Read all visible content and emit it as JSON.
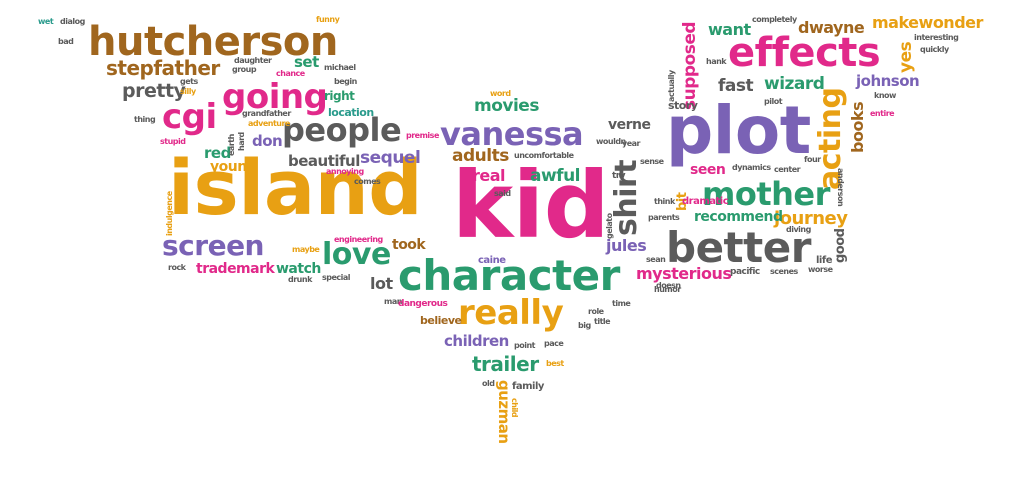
{
  "palette": {
    "magenta": "#e1298a",
    "orange": "#e8a013",
    "purple": "#7a62b5",
    "green": "#2a9b6e",
    "gray": "#5b5b5b",
    "brown": "#a0661e",
    "teal": "#2a9b8c"
  },
  "words": [
    {
      "text": "kid",
      "c": "magenta",
      "r": 0
    },
    {
      "text": "island",
      "c": "orange",
      "r": 0
    },
    {
      "text": "plot",
      "c": "purple",
      "r": 0
    },
    {
      "text": "character",
      "c": "green",
      "r": 0
    },
    {
      "text": "better",
      "c": "gray",
      "r": 0
    },
    {
      "text": "hutcherson",
      "c": "brown",
      "r": 0
    },
    {
      "text": "effects",
      "c": "magenta",
      "r": 0
    },
    {
      "text": "mother",
      "c": "green",
      "r": 0
    },
    {
      "text": "vanessa",
      "c": "purple",
      "r": 0
    },
    {
      "text": "people",
      "c": "gray",
      "r": 0
    },
    {
      "text": "going",
      "c": "magenta",
      "r": 0
    },
    {
      "text": "really",
      "c": "orange",
      "r": 0
    },
    {
      "text": "screen",
      "c": "purple",
      "r": 0
    },
    {
      "text": "cgi",
      "c": "magenta",
      "r": 0
    },
    {
      "text": "love",
      "c": "green",
      "r": 0
    },
    {
      "text": "acting",
      "c": "orange",
      "r": -90
    },
    {
      "text": "shirt",
      "c": "gray",
      "r": -90
    },
    {
      "text": "stepfather",
      "c": "brown",
      "r": 0
    },
    {
      "text": "makewonder",
      "c": "orange",
      "r": 0
    },
    {
      "text": "supposed",
      "c": "magenta",
      "r": -90
    },
    {
      "text": "pretty",
      "c": "gray",
      "r": 0
    },
    {
      "text": "journey",
      "c": "orange",
      "r": 0
    },
    {
      "text": "fast",
      "c": "gray",
      "r": 0
    },
    {
      "text": "wizard",
      "c": "green",
      "r": 0
    },
    {
      "text": "dwayne",
      "c": "brown",
      "r": 0
    },
    {
      "text": "want",
      "c": "green",
      "r": 0
    },
    {
      "text": "books",
      "c": "brown",
      "r": -90
    },
    {
      "text": "johnson",
      "c": "purple",
      "r": 0
    },
    {
      "text": "yes",
      "c": "orange",
      "r": -90
    },
    {
      "text": "movies",
      "c": "green",
      "r": 0
    },
    {
      "text": "sequel",
      "c": "purple",
      "r": 0
    },
    {
      "text": "adults",
      "c": "brown",
      "r": 0
    },
    {
      "text": "awful",
      "c": "green",
      "r": 0
    },
    {
      "text": "real",
      "c": "magenta",
      "r": 0
    },
    {
      "text": "jules",
      "c": "purple",
      "r": 0
    },
    {
      "text": "mysterious",
      "c": "magenta",
      "r": 0
    },
    {
      "text": "trailer",
      "c": "green",
      "r": 0
    },
    {
      "text": "children",
      "c": "purple",
      "r": 0
    },
    {
      "text": "guzman",
      "c": "orange",
      "r": 90
    },
    {
      "text": "red",
      "c": "green",
      "r": 0
    },
    {
      "text": "young",
      "c": "orange",
      "r": 0
    },
    {
      "text": "beautiful",
      "c": "gray",
      "r": 0
    },
    {
      "text": "don",
      "c": "purple",
      "r": 0
    },
    {
      "text": "set",
      "c": "green",
      "r": 0
    },
    {
      "text": "right",
      "c": "green",
      "r": 0
    },
    {
      "text": "lot",
      "c": "gray",
      "r": 0
    },
    {
      "text": "took",
      "c": "brown",
      "r": 0
    },
    {
      "text": "watch",
      "c": "green",
      "r": 0
    },
    {
      "text": "trademark",
      "c": "magenta",
      "r": 0
    },
    {
      "text": "verne",
      "c": "gray",
      "r": 0
    },
    {
      "text": "seen",
      "c": "magenta",
      "r": 0
    },
    {
      "text": "recommend",
      "c": "green",
      "r": 0
    },
    {
      "text": "good",
      "c": "gray",
      "r": -90
    },
    {
      "text": "bit",
      "c": "orange",
      "r": -90
    },
    {
      "text": "believe",
      "c": "brown",
      "r": 0
    },
    {
      "text": "story",
      "c": "gray",
      "r": 0
    },
    {
      "text": "life",
      "c": "gray",
      "r": 0
    },
    {
      "text": "family",
      "c": "gray",
      "r": 0
    },
    {
      "text": "location",
      "c": "teal",
      "r": 0
    },
    {
      "text": "dramatic",
      "c": "magenta",
      "r": 0
    },
    {
      "text": "dialog",
      "c": "gray",
      "r": 0
    },
    {
      "text": "wet",
      "c": "teal",
      "r": 0
    },
    {
      "text": "bad",
      "c": "gray",
      "r": 0
    },
    {
      "text": "funny",
      "c": "orange",
      "r": 0
    },
    {
      "text": "daughter",
      "c": "gray",
      "r": 0
    },
    {
      "text": "group",
      "c": "gray",
      "r": 0
    },
    {
      "text": "gets",
      "c": "gray",
      "r": 0
    },
    {
      "text": "silly",
      "c": "orange",
      "r": 0
    },
    {
      "text": "chance",
      "c": "magenta",
      "r": 0
    },
    {
      "text": "michael",
      "c": "gray",
      "r": 0
    },
    {
      "text": "begin",
      "c": "gray",
      "r": 0
    },
    {
      "text": "grandfather",
      "c": "gray",
      "r": 0
    },
    {
      "text": "adventure",
      "c": "orange",
      "r": 0
    },
    {
      "text": "thing",
      "c": "gray",
      "r": 0
    },
    {
      "text": "hard",
      "c": "gray",
      "r": -90
    },
    {
      "text": "earth",
      "c": "gray",
      "r": -90
    },
    {
      "text": "stupid",
      "c": "magenta",
      "r": 0
    },
    {
      "text": "annoying",
      "c": "magenta",
      "r": 0
    },
    {
      "text": "comes",
      "c": "gray",
      "r": 0
    },
    {
      "text": "indulgence",
      "c": "orange",
      "r": -90
    },
    {
      "text": "premise",
      "c": "magenta",
      "r": 0
    },
    {
      "text": "uncomfortable",
      "c": "gray",
      "r": 0
    },
    {
      "text": "said",
      "c": "gray",
      "r": 0
    },
    {
      "text": "word",
      "c": "orange",
      "r": 0
    },
    {
      "text": "engineering",
      "c": "magenta",
      "r": 0
    },
    {
      "text": "maybe",
      "c": "orange",
      "r": 0
    },
    {
      "text": "caine",
      "c": "purple",
      "r": 0
    },
    {
      "text": "rock",
      "c": "gray",
      "r": 0
    },
    {
      "text": "drunk",
      "c": "gray",
      "r": 0
    },
    {
      "text": "special",
      "c": "gray",
      "r": 0
    },
    {
      "text": "man",
      "c": "gray",
      "r": 0
    },
    {
      "text": "dangerous",
      "c": "magenta",
      "r": 0
    },
    {
      "text": "role",
      "c": "gray",
      "r": 0
    },
    {
      "text": "big",
      "c": "gray",
      "r": 0
    },
    {
      "text": "title",
      "c": "gray",
      "r": 0
    },
    {
      "text": "time",
      "c": "gray",
      "r": 0
    },
    {
      "text": "point",
      "c": "gray",
      "r": 0
    },
    {
      "text": "pace",
      "c": "gray",
      "r": 0
    },
    {
      "text": "best",
      "c": "orange",
      "r": 0
    },
    {
      "text": "old",
      "c": "gray",
      "r": 0
    },
    {
      "text": "child",
      "c": "orange",
      "r": 90
    },
    {
      "text": "year",
      "c": "gray",
      "r": 0
    },
    {
      "text": "sense",
      "c": "gray",
      "r": 0
    },
    {
      "text": "wouldn",
      "c": "gray",
      "r": 0
    },
    {
      "text": "try",
      "c": "gray",
      "r": 0
    },
    {
      "text": "think",
      "c": "gray",
      "r": 0
    },
    {
      "text": "sean",
      "c": "gray",
      "r": 0
    },
    {
      "text": "parents",
      "c": "gray",
      "r": 0
    },
    {
      "text": "gelato",
      "c": "gray",
      "r": -90
    },
    {
      "text": "dynamics",
      "c": "gray",
      "r": 0
    },
    {
      "text": "center",
      "c": "gray",
      "r": 0
    },
    {
      "text": "diving",
      "c": "gray",
      "r": 0
    },
    {
      "text": "four",
      "c": "gray",
      "r": 0
    },
    {
      "text": "pacific",
      "c": "gray",
      "r": 0
    },
    {
      "text": "scenes",
      "c": "gray",
      "r": 0
    },
    {
      "text": "worse",
      "c": "gray",
      "r": 0
    },
    {
      "text": "humor",
      "c": "gray",
      "r": 0
    },
    {
      "text": "doesn",
      "c": "gray",
      "r": 0
    },
    {
      "text": "anderson",
      "c": "gray",
      "r": 90
    },
    {
      "text": "entire",
      "c": "magenta",
      "r": 0
    },
    {
      "text": "know",
      "c": "gray",
      "r": 0
    },
    {
      "text": "quickly",
      "c": "gray",
      "r": 0
    },
    {
      "text": "interesting",
      "c": "gray",
      "r": 0
    },
    {
      "text": "completely",
      "c": "gray",
      "r": 0
    },
    {
      "text": "hank",
      "c": "gray",
      "r": 0
    },
    {
      "text": "actually",
      "c": "gray",
      "r": -90
    },
    {
      "text": "pilot",
      "c": "gray",
      "r": 0
    }
  ]
}
